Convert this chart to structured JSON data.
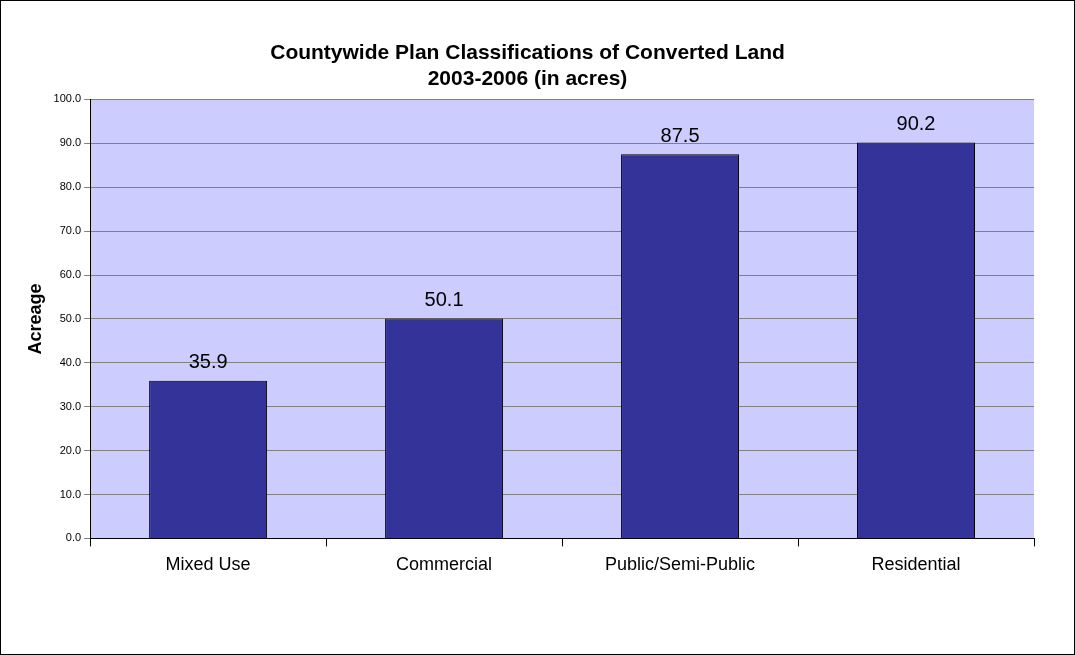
{
  "chart_data": {
    "type": "bar",
    "title": "Countywide Plan Classifications of Converted Land\n2003-2006 (in acres)",
    "ylabel": "Acreage",
    "categories": [
      "Mixed Use",
      "Commercial",
      "Public/Semi-Public",
      "Residential"
    ],
    "values": [
      35.9,
      50.1,
      87.5,
      90.2
    ],
    "color": "#333399",
    "ylim": [
      0,
      100
    ],
    "yticks": [
      {
        "value": 0,
        "label": "0.0"
      },
      {
        "value": 10,
        "label": "10.0"
      },
      {
        "value": 20,
        "label": "20.0"
      },
      {
        "value": 30,
        "label": "30.0"
      },
      {
        "value": 40,
        "label": "40.0"
      },
      {
        "value": 50,
        "label": "50.0"
      },
      {
        "value": 60,
        "label": "60.0"
      },
      {
        "value": 70,
        "label": "70.0"
      },
      {
        "value": 80,
        "label": "80.0"
      },
      {
        "value": 90,
        "label": "90.0"
      },
      {
        "value": 100,
        "label": "100.0"
      }
    ],
    "grid": "y",
    "data_labels": true,
    "legend": false
  }
}
